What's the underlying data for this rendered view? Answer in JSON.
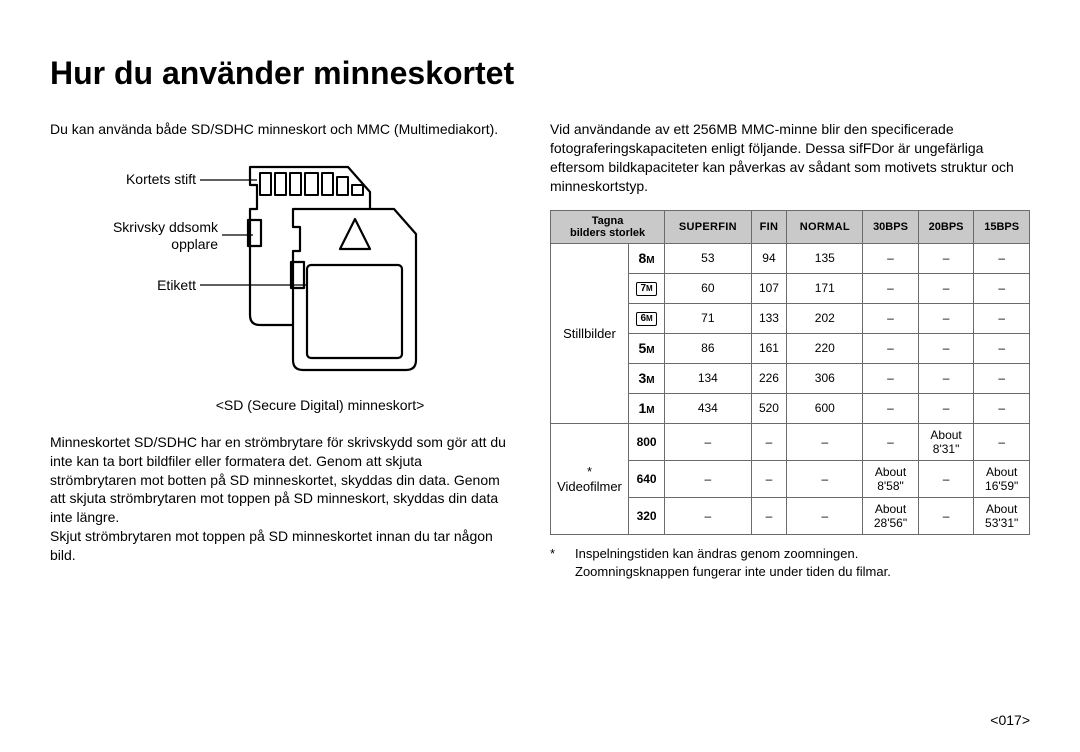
{
  "title": "Hur du använder minneskortet",
  "left": {
    "intro": "Du kan använda både SD/SDHC minneskort och MMC (Multimediakort).",
    "labels": {
      "pins": "Kortets stift",
      "switch_l1": "Skrivsky ddsomk",
      "switch_l2": "opplare",
      "label": "Etikett"
    },
    "caption": "<SD (Secure Digital) minneskort>",
    "paragraph": "Minneskortet SD/SDHC har en strömbrytare för skrivskydd som gör att du inte kan ta bort bildfiler eller formatera det. Genom att skjuta strömbrytaren mot botten på SD minneskortet, skyddas din data. Genom att skjuta strömbrytaren mot toppen på SD minneskort, skyddas din data inte längre.\nSkjut strömbrytaren mot toppen på SD minneskortet innan du tar någon bild."
  },
  "right": {
    "intro": "Vid användande av ett 256MB MMC-minne blir den specificerade fotograferingskapaciteten enligt följande. Dessa sifFDor är ungefärliga eftersom bildkapaciteter kan påverkas av sådant som motivets struktur och minneskortstyp.",
    "table": {
      "header": {
        "c1_l1": "Tagna",
        "c1_l2": "bilders storlek",
        "c2": "SUPERFIN",
        "c3": "FIN",
        "c4": "NORMAL",
        "c5": "30BPS",
        "c6": "20BPS",
        "c7": "15BPS"
      },
      "section1_label": "Stillbilder",
      "section2_label": "* Videofilmer",
      "rows_still": [
        {
          "icon": "8M",
          "boxed": false,
          "superfin": "53",
          "fin": "94",
          "normal": "135",
          "b30": "‒",
          "b20": "‒",
          "b15": "‒"
        },
        {
          "icon": "7M",
          "boxed": true,
          "superfin": "60",
          "fin": "107",
          "normal": "171",
          "b30": "‒",
          "b20": "‒",
          "b15": "‒"
        },
        {
          "icon": "6M",
          "boxed": true,
          "superfin": "71",
          "fin": "133",
          "normal": "202",
          "b30": "‒",
          "b20": "‒",
          "b15": "‒"
        },
        {
          "icon": "5M",
          "boxed": false,
          "superfin": "86",
          "fin": "161",
          "normal": "220",
          "b30": "‒",
          "b20": "‒",
          "b15": "‒"
        },
        {
          "icon": "3M",
          "boxed": false,
          "superfin": "134",
          "fin": "226",
          "normal": "306",
          "b30": "‒",
          "b20": "‒",
          "b15": "‒"
        },
        {
          "icon": "1M",
          "boxed": false,
          "superfin": "434",
          "fin": "520",
          "normal": "600",
          "b30": "‒",
          "b20": "‒",
          "b15": "‒"
        }
      ],
      "rows_video": [
        {
          "size": "800",
          "superfin": "‒",
          "fin": "‒",
          "normal": "‒",
          "b30": "‒",
          "b20": "About\n8'31\"",
          "b15": "‒"
        },
        {
          "size": "640",
          "superfin": "‒",
          "fin": "‒",
          "normal": "‒",
          "b30": "About\n8'58\"",
          "b20": "‒",
          "b15": "About\n16'59\""
        },
        {
          "size": "320",
          "superfin": "‒",
          "fin": "‒",
          "normal": "‒",
          "b30": "About\n28'56\"",
          "b20": "‒",
          "b15": "About\n53'31\""
        }
      ]
    },
    "footnote1": "Inspelningstiden kan ändras genom zoomningen.",
    "footnote2": "Zoomningsknappen fungerar inte under tiden du filmar."
  },
  "page_number": "<017>",
  "colors": {
    "text": "#000000",
    "header_bg": "#c9c9c9",
    "border": "#6b6b6b",
    "diagram_stroke": "#000000"
  }
}
